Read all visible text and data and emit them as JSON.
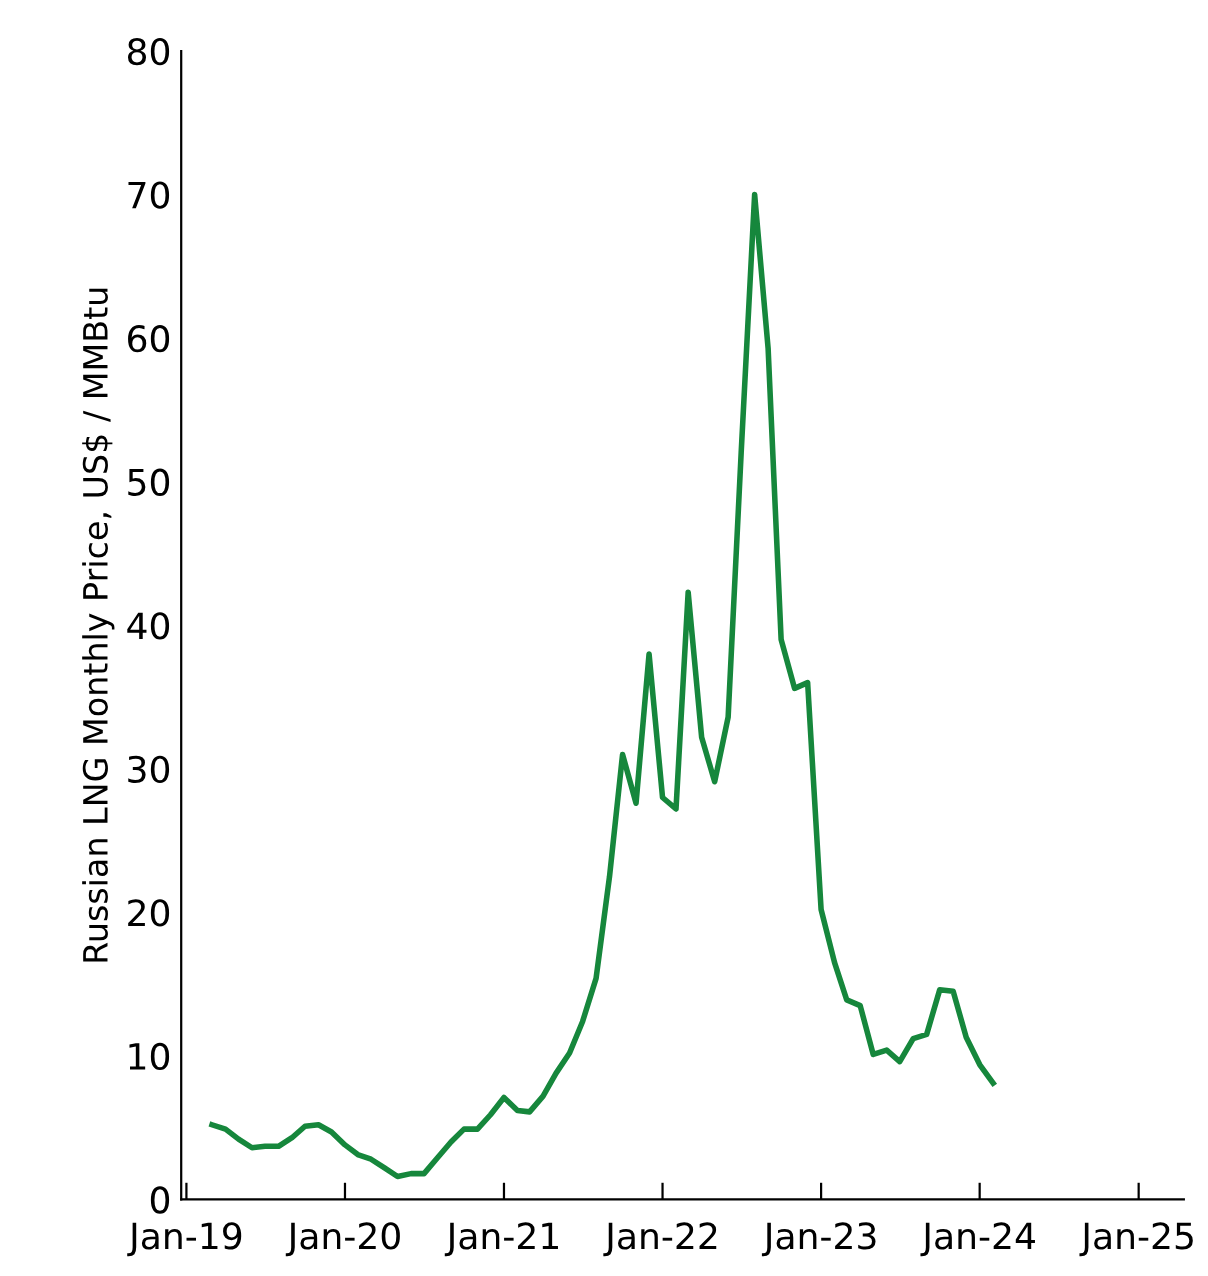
{
  "chart_data": {
    "type": "line",
    "ylabel": "Russian LNG Monthly Price, US$ / MMBtu",
    "x": [
      "2019-03",
      "2019-04",
      "2019-05",
      "2019-06",
      "2019-07",
      "2019-08",
      "2019-09",
      "2019-10",
      "2019-11",
      "2019-12",
      "2020-01",
      "2020-02",
      "2020-03",
      "2020-04",
      "2020-05",
      "2020-06",
      "2020-07",
      "2020-08",
      "2020-09",
      "2020-10",
      "2020-11",
      "2020-12",
      "2021-01",
      "2021-02",
      "2021-03",
      "2021-04",
      "2021-05",
      "2021-06",
      "2021-07",
      "2021-08",
      "2021-09",
      "2021-10",
      "2021-11",
      "2021-12",
      "2022-01",
      "2022-02",
      "2022-03",
      "2022-04",
      "2022-05",
      "2022-06",
      "2022-07",
      "2022-08",
      "2022-09",
      "2022-10",
      "2022-11",
      "2022-12",
      "2023-01",
      "2023-02",
      "2023-03",
      "2023-04",
      "2023-05",
      "2023-06",
      "2023-07",
      "2023-08",
      "2023-09",
      "2023-10",
      "2023-11",
      "2023-12",
      "2024-01",
      "2024-02"
    ],
    "series": [
      {
        "color": "#16873c",
        "values": [
          5.2,
          4.9,
          4.2,
          3.6,
          3.7,
          3.7,
          4.3,
          5.1,
          5.2,
          4.7,
          3.8,
          3.1,
          2.8,
          2.2,
          1.6,
          1.8,
          1.8,
          2.9,
          4.0,
          4.9,
          4.9,
          5.9,
          7.1,
          6.2,
          6.1,
          7.2,
          8.8,
          10.2,
          12.4,
          15.4,
          22.5,
          31.0,
          27.6,
          38.0,
          28.0,
          27.2,
          42.3,
          32.2,
          29.1,
          33.6,
          52,
          70.0,
          59.3,
          39.0,
          35.6,
          36.0,
          20.2,
          16.5,
          13.9,
          13.5,
          10.1,
          10.4,
          9.6,
          11.2,
          11.5,
          14.6,
          14.5,
          11.3,
          9.4,
          8.1
        ]
      }
    ],
    "xlim": [
      "2018-12-20",
      "2025-04-15"
    ],
    "xticks": [
      {
        "value": "2019-01",
        "label": "Jan-19"
      },
      {
        "value": "2020-01",
        "label": "Jan-20"
      },
      {
        "value": "2021-01",
        "label": "Jan-21"
      },
      {
        "value": "2022-01",
        "label": "Jan-22"
      },
      {
        "value": "2023-01",
        "label": "Jan-23"
      },
      {
        "value": "2024-01",
        "label": "Jan-24"
      },
      {
        "value": "2025-01",
        "label": "Jan-25"
      }
    ],
    "ylim": [
      0,
      80
    ],
    "yticks": [
      0,
      10,
      20,
      30,
      40,
      50,
      60,
      70,
      80
    ],
    "grid": false,
    "legend": false,
    "marker": "none",
    "line_style": "solid"
  }
}
